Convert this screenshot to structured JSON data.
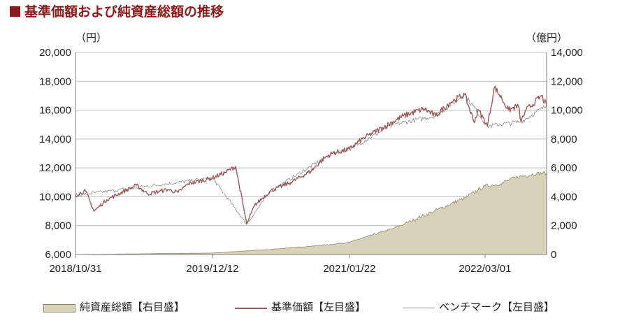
{
  "title": "基準価額および純資産総額の推移",
  "colors": {
    "title": "#8b1a1a",
    "nav_line": "#9a5a5a",
    "aum_fill": "#d8d2b9",
    "aum_stroke": "#8f8a74",
    "benchmark": "#8c8c8c"
  },
  "chart_data": {
    "type": "line",
    "left_axis": {
      "unit": "（円）",
      "ylim": [
        6000,
        20000
      ],
      "ticks": [
        "6,000",
        "8,000",
        "10,000",
        "12,000",
        "14,000",
        "16,000",
        "18,000",
        "20,000"
      ]
    },
    "right_axis": {
      "unit": "（億円）",
      "ylim": [
        0,
        14000
      ],
      "ticks": [
        "0",
        "2,000",
        "4,000",
        "6,000",
        "8,000",
        "10,000",
        "12,000",
        "14,000"
      ]
    },
    "x_ticks": [
      "2018/10/31",
      "2019/12/12",
      "2021/01/22",
      "2022/03/01"
    ],
    "grid": "horizontal",
    "legend_position": "bottom",
    "series": [
      {
        "name": "純資産総額【右目盛】",
        "axis": "right",
        "kind": "area",
        "x": [
          "2018/10/31",
          "2019/03/01",
          "2019/07/01",
          "2019/12/12",
          "2020/06/01",
          "2020/12/01",
          "2021/01/22",
          "2021/06/01",
          "2021/10/01",
          "2022/01/03",
          "2022/03/01",
          "2022/04/15",
          "2022/06/01",
          "2022/08/01",
          "2022/08/31"
        ],
        "values": [
          0,
          30,
          60,
          100,
          350,
          700,
          850,
          1800,
          3000,
          3950,
          4750,
          4900,
          5350,
          5600,
          5650
        ]
      },
      {
        "name": "基準価額【左目盛】",
        "axis": "left",
        "kind": "line",
        "x": [
          "2018/10/31",
          "2018/11/30",
          "2018/12/25",
          "2019/02/01",
          "2019/04/30",
          "2019/06/03",
          "2019/08/01",
          "2019/09/01",
          "2019/10/01",
          "2019/12/12",
          "2020/01/20",
          "2020/02/19",
          "2020/03/23",
          "2020/04/15",
          "2020/06/01",
          "2020/08/01",
          "2020/10/01",
          "2020/11/09",
          "2020/12/01",
          "2021/01/22",
          "2021/03/01",
          "2021/05/01",
          "2021/07/01",
          "2021/09/01",
          "2021/10/05",
          "2021/11/15",
          "2021/12/01",
          "2021/12/30",
          "2022/01/27",
          "2022/02/10",
          "2022/03/08",
          "2022/03/29",
          "2022/04/20",
          "2022/05/10",
          "2022/06/08",
          "2022/06/16",
          "2022/07/01",
          "2022/08/16",
          "2022/08/31"
        ],
        "values": [
          10100,
          10400,
          9000,
          9800,
          10800,
          10200,
          10500,
          10300,
          10900,
          11300,
          11700,
          12100,
          8100,
          9400,
          10400,
          11000,
          11800,
          12700,
          13000,
          13300,
          14000,
          14800,
          15600,
          16100,
          15600,
          16500,
          16700,
          17100,
          15200,
          16000,
          14900,
          17600,
          16800,
          16000,
          16300,
          15200,
          16000,
          17000,
          16300
        ]
      },
      {
        "name": "ベンチマーク【左目盛】",
        "axis": "left",
        "kind": "line",
        "x": [
          "2018/10/31",
          "2019/12/12",
          "2020/03/23",
          "2020/06/01",
          "2020/12/01",
          "2021/01/22",
          "2021/06/01",
          "2021/10/05",
          "2021/12/30",
          "2022/03/08",
          "2022/06/16",
          "2022/08/31"
        ],
        "values": [
          10100,
          11300,
          8100,
          10400,
          13000,
          13300,
          15000,
          15600,
          17100,
          14900,
          15200,
          16300
        ]
      }
    ]
  }
}
